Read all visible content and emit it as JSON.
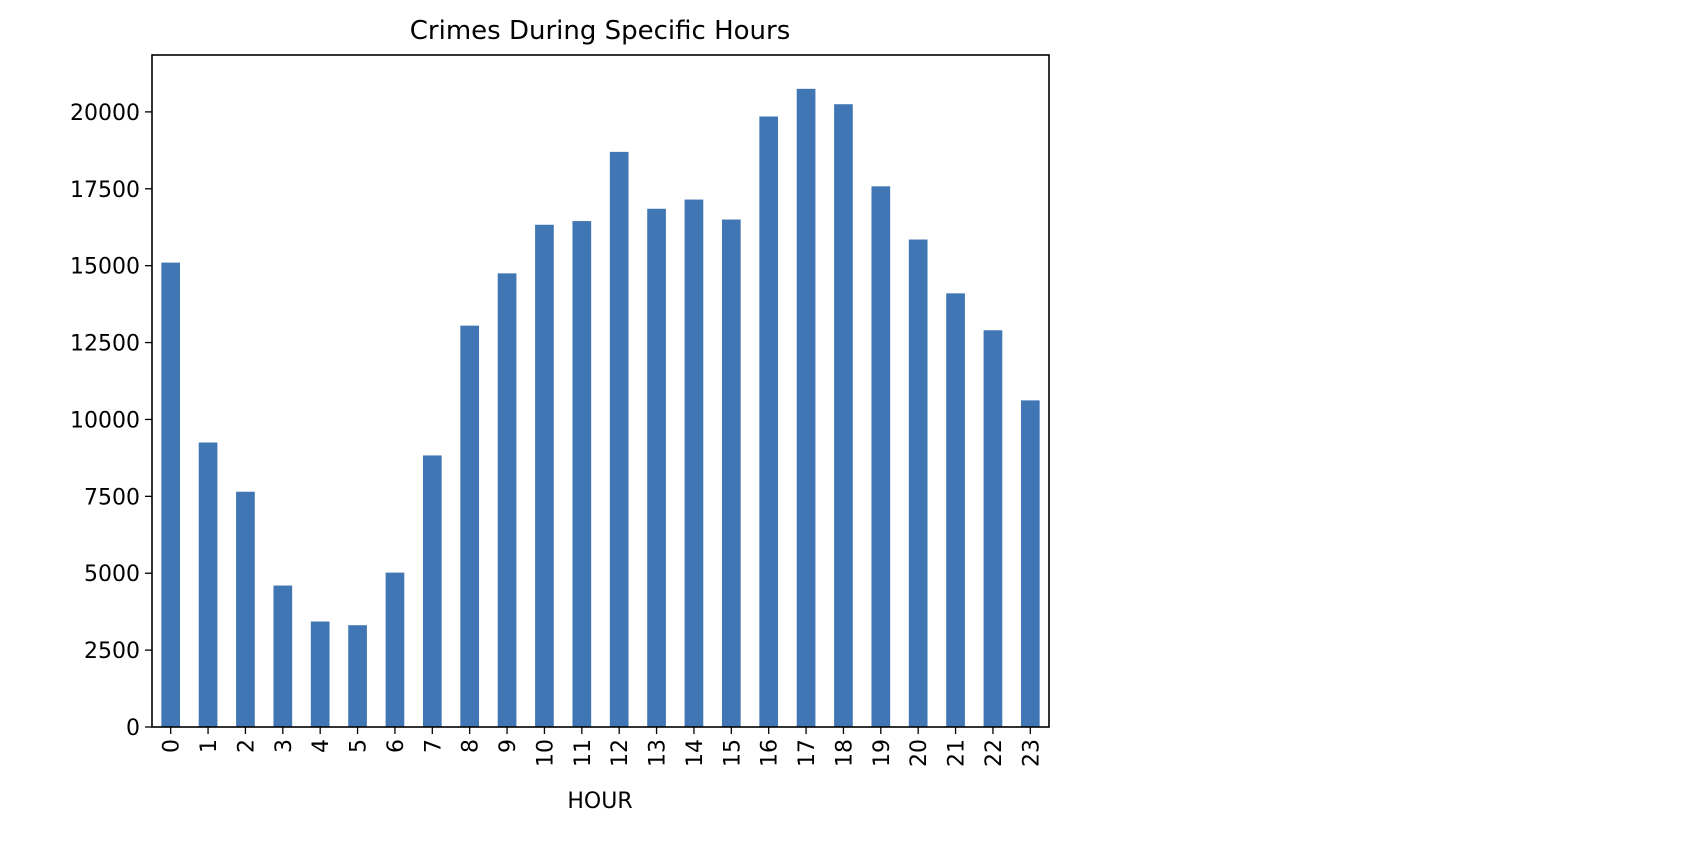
{
  "chart_data": {
    "type": "bar",
    "title": "Crimes During Specific Hours",
    "xlabel": "HOUR",
    "ylabel": "",
    "categories": [
      "0",
      "1",
      "2",
      "3",
      "4",
      "5",
      "6",
      "7",
      "8",
      "9",
      "10",
      "11",
      "12",
      "13",
      "14",
      "15",
      "16",
      "17",
      "18",
      "19",
      "20",
      "21",
      "22",
      "23"
    ],
    "values": [
      15100,
      9250,
      7650,
      4600,
      3430,
      3310,
      5020,
      8830,
      13050,
      14750,
      16330,
      16450,
      18700,
      16850,
      17150,
      16500,
      19850,
      20750,
      20250,
      17580,
      15850,
      14100,
      12900,
      10620
    ],
    "ylim": [
      0,
      21850
    ],
    "yticks": [
      0,
      2500,
      5000,
      7500,
      10000,
      12500,
      15000,
      17500,
      20000
    ],
    "ytick_labels": [
      "0",
      "2500",
      "5000",
      "7500",
      "10000",
      "12500",
      "15000",
      "17500",
      "20000"
    ],
    "bar_color": "#4176b4",
    "grid": false,
    "legend": "none"
  }
}
